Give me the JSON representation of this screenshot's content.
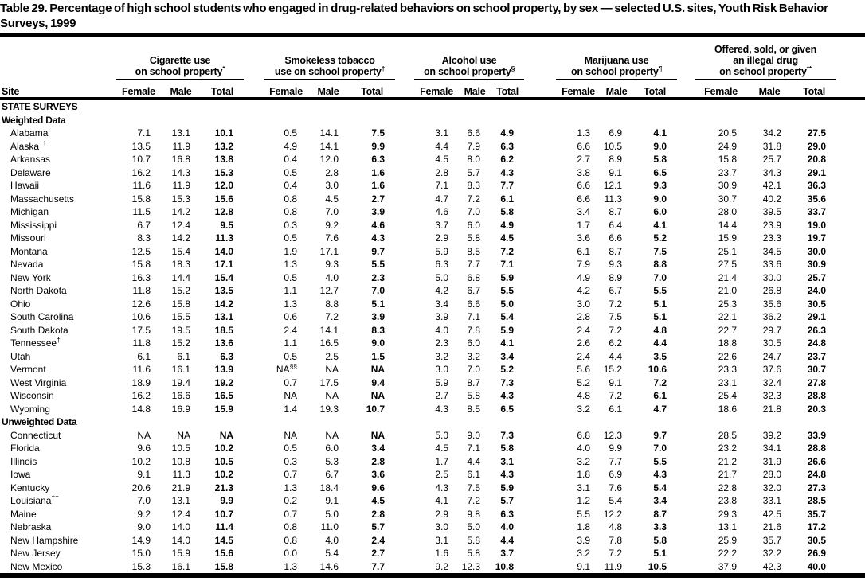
{
  "title": "Table 29. Percentage of high school students who engaged in drug-related behaviors on school property, by sex — selected U.S. sites, Youth Risk Behavior Surveys, 1999",
  "table": {
    "site_column_header": "Site",
    "column_groups": [
      {
        "name": "cigarette-use",
        "lines": [
          "Cigarette use",
          "on school property*"
        ]
      },
      {
        "name": "smokeless-tobacco-use",
        "lines": [
          "Smokeless tobacco",
          "use on school property†"
        ]
      },
      {
        "name": "alcohol-use",
        "lines": [
          "Alcohol use",
          "on school property§"
        ]
      },
      {
        "name": "marijuana-use",
        "lines": [
          "Marijuana use",
          "on school property¶"
        ]
      },
      {
        "name": "offered-sold-given-illegal-drug",
        "lines": [
          "Offered, sold, or given",
          "an illegal drug",
          "on school property**"
        ]
      }
    ],
    "sub_columns": [
      "Female",
      "Male",
      "Total"
    ],
    "rows": [
      {
        "type": "section",
        "label": "STATE SURVEYS"
      },
      {
        "type": "section",
        "label": "Weighted Data"
      },
      {
        "type": "data",
        "site": "Alabama",
        "sup": "",
        "values": [
          "7.1",
          "13.1",
          "10.1",
          "0.5",
          "14.1",
          "7.5",
          "3.1",
          "6.6",
          "4.9",
          "1.3",
          "6.9",
          "4.1",
          "20.5",
          "34.2",
          "27.5"
        ]
      },
      {
        "type": "data",
        "site": "Alaska",
        "sup": "††",
        "values": [
          "13.5",
          "11.9",
          "13.2",
          "4.9",
          "14.1",
          "9.9",
          "4.4",
          "7.9",
          "6.3",
          "6.6",
          "10.5",
          "9.0",
          "24.9",
          "31.8",
          "29.0"
        ]
      },
      {
        "type": "data",
        "site": "Arkansas",
        "sup": "",
        "values": [
          "10.7",
          "16.8",
          "13.8",
          "0.4",
          "12.0",
          "6.3",
          "4.5",
          "8.0",
          "6.2",
          "2.7",
          "8.9",
          "5.8",
          "15.8",
          "25.7",
          "20.8"
        ]
      },
      {
        "type": "data",
        "site": "Delaware",
        "sup": "",
        "values": [
          "16.2",
          "14.3",
          "15.3",
          "0.5",
          "2.8",
          "1.6",
          "2.8",
          "5.7",
          "4.3",
          "3.8",
          "9.1",
          "6.5",
          "23.7",
          "34.3",
          "29.1"
        ]
      },
      {
        "type": "data",
        "site": "Hawaii",
        "sup": "",
        "values": [
          "11.6",
          "11.9",
          "12.0",
          "0.4",
          "3.0",
          "1.6",
          "7.1",
          "8.3",
          "7.7",
          "6.6",
          "12.1",
          "9.3",
          "30.9",
          "42.1",
          "36.3"
        ]
      },
      {
        "type": "data",
        "site": "Massachusetts",
        "sup": "",
        "values": [
          "15.8",
          "15.3",
          "15.6",
          "0.8",
          "4.5",
          "2.7",
          "4.7",
          "7.2",
          "6.1",
          "6.6",
          "11.3",
          "9.0",
          "30.7",
          "40.2",
          "35.6"
        ]
      },
      {
        "type": "data",
        "site": "Michigan",
        "sup": "",
        "values": [
          "11.5",
          "14.2",
          "12.8",
          "0.8",
          "7.0",
          "3.9",
          "4.6",
          "7.0",
          "5.8",
          "3.4",
          "8.7",
          "6.0",
          "28.0",
          "39.5",
          "33.7"
        ]
      },
      {
        "type": "data",
        "site": "Mississippi",
        "sup": "",
        "values": [
          "6.7",
          "12.4",
          "9.5",
          "0.3",
          "9.2",
          "4.6",
          "3.7",
          "6.0",
          "4.9",
          "1.7",
          "6.4",
          "4.1",
          "14.4",
          "23.9",
          "19.0"
        ]
      },
      {
        "type": "data",
        "site": "Missouri",
        "sup": "",
        "values": [
          "8.3",
          "14.2",
          "11.3",
          "0.5",
          "7.6",
          "4.3",
          "2.9",
          "5.8",
          "4.5",
          "3.6",
          "6.6",
          "5.2",
          "15.9",
          "23.3",
          "19.7"
        ]
      },
      {
        "type": "data",
        "site": "Montana",
        "sup": "",
        "values": [
          "12.5",
          "15.4",
          "14.0",
          "1.9",
          "17.1",
          "9.7",
          "5.9",
          "8.5",
          "7.2",
          "6.1",
          "8.7",
          "7.5",
          "25.1",
          "34.5",
          "30.0"
        ]
      },
      {
        "type": "data",
        "site": "Nevada",
        "sup": "",
        "values": [
          "15.8",
          "18.3",
          "17.1",
          "1.3",
          "9.3",
          "5.5",
          "6.3",
          "7.7",
          "7.1",
          "7.9",
          "9.3",
          "8.8",
          "27.5",
          "33.6",
          "30.9"
        ]
      },
      {
        "type": "data",
        "site": "New York",
        "sup": "",
        "values": [
          "16.3",
          "14.4",
          "15.4",
          "0.5",
          "4.0",
          "2.3",
          "5.0",
          "6.8",
          "5.9",
          "4.9",
          "8.9",
          "7.0",
          "21.4",
          "30.0",
          "25.7"
        ]
      },
      {
        "type": "data",
        "site": "North Dakota",
        "sup": "",
        "values": [
          "11.8",
          "15.2",
          "13.5",
          "1.1",
          "12.7",
          "7.0",
          "4.2",
          "6.7",
          "5.5",
          "4.2",
          "6.7",
          "5.5",
          "21.0",
          "26.8",
          "24.0"
        ]
      },
      {
        "type": "data",
        "site": "Ohio",
        "sup": "",
        "values": [
          "12.6",
          "15.8",
          "14.2",
          "1.3",
          "8.8",
          "5.1",
          "3.4",
          "6.6",
          "5.0",
          "3.0",
          "7.2",
          "5.1",
          "25.3",
          "35.6",
          "30.5"
        ]
      },
      {
        "type": "data",
        "site": "South Carolina",
        "sup": "",
        "values": [
          "10.6",
          "15.5",
          "13.1",
          "0.6",
          "7.2",
          "3.9",
          "3.9",
          "7.1",
          "5.4",
          "2.8",
          "7.5",
          "5.1",
          "22.1",
          "36.2",
          "29.1"
        ]
      },
      {
        "type": "data",
        "site": "South Dakota",
        "sup": "",
        "values": [
          "17.5",
          "19.5",
          "18.5",
          "2.4",
          "14.1",
          "8.3",
          "4.0",
          "7.8",
          "5.9",
          "2.4",
          "7.2",
          "4.8",
          "22.7",
          "29.7",
          "26.3"
        ]
      },
      {
        "type": "data",
        "site": "Tennessee",
        "sup": "†",
        "values": [
          "11.8",
          "15.2",
          "13.6",
          "1.1",
          "16.5",
          "9.0",
          "2.3",
          "6.0",
          "4.1",
          "2.6",
          "6.2",
          "4.4",
          "18.8",
          "30.5",
          "24.8"
        ]
      },
      {
        "type": "data",
        "site": "Utah",
        "sup": "",
        "values": [
          "6.1",
          "6.1",
          "6.3",
          "0.5",
          "2.5",
          "1.5",
          "3.2",
          "3.2",
          "3.4",
          "2.4",
          "4.4",
          "3.5",
          "22.6",
          "24.7",
          "23.7"
        ]
      },
      {
        "type": "data",
        "site": "Vermont",
        "sup": "",
        "values": [
          "11.6",
          "16.1",
          "13.9",
          "NA§§",
          "NA",
          "NA",
          "3.0",
          "7.0",
          "5.2",
          "5.6",
          "15.2",
          "10.6",
          "23.3",
          "37.6",
          "30.7"
        ]
      },
      {
        "type": "data",
        "site": "West Virginia",
        "sup": "",
        "values": [
          "18.9",
          "19.4",
          "19.2",
          "0.7",
          "17.5",
          "9.4",
          "5.9",
          "8.7",
          "7.3",
          "5.2",
          "9.1",
          "7.2",
          "23.1",
          "32.4",
          "27.8"
        ]
      },
      {
        "type": "data",
        "site": "Wisconsin",
        "sup": "",
        "values": [
          "16.2",
          "16.6",
          "16.5",
          "NA",
          "NA",
          "NA",
          "2.7",
          "5.8",
          "4.3",
          "4.8",
          "7.2",
          "6.1",
          "25.4",
          "32.3",
          "28.8"
        ]
      },
      {
        "type": "data",
        "site": "Wyoming",
        "sup": "",
        "values": [
          "14.8",
          "16.9",
          "15.9",
          "1.4",
          "19.3",
          "10.7",
          "4.3",
          "8.5",
          "6.5",
          "3.2",
          "6.1",
          "4.7",
          "18.6",
          "21.8",
          "20.3"
        ]
      },
      {
        "type": "section",
        "label": "Unweighted Data"
      },
      {
        "type": "data",
        "site": "Connecticut",
        "sup": "",
        "values": [
          "NA",
          "NA",
          "NA",
          "NA",
          "NA",
          "NA",
          "5.0",
          "9.0",
          "7.3",
          "6.8",
          "12.3",
          "9.7",
          "28.5",
          "39.2",
          "33.9"
        ]
      },
      {
        "type": "data",
        "site": "Florida",
        "sup": "",
        "values": [
          "9.6",
          "10.5",
          "10.2",
          "0.5",
          "6.0",
          "3.4",
          "4.5",
          "7.1",
          "5.8",
          "4.0",
          "9.9",
          "7.0",
          "23.2",
          "34.1",
          "28.8"
        ]
      },
      {
        "type": "data",
        "site": "Illinois",
        "sup": "",
        "values": [
          "10.2",
          "10.8",
          "10.5",
          "0.3",
          "5.3",
          "2.8",
          "1.7",
          "4.4",
          "3.1",
          "3.2",
          "7.7",
          "5.5",
          "21.2",
          "31.9",
          "26.6"
        ]
      },
      {
        "type": "data",
        "site": "Iowa",
        "sup": "",
        "values": [
          "9.1",
          "11.3",
          "10.2",
          "0.7",
          "6.7",
          "3.6",
          "2.5",
          "6.1",
          "4.3",
          "1.8",
          "6.9",
          "4.3",
          "21.7",
          "28.0",
          "24.8"
        ]
      },
      {
        "type": "data",
        "site": "Kentucky",
        "sup": "",
        "values": [
          "20.6",
          "21.9",
          "21.3",
          "1.3",
          "18.4",
          "9.6",
          "4.3",
          "7.5",
          "5.9",
          "3.1",
          "7.6",
          "5.4",
          "22.8",
          "32.0",
          "27.3"
        ]
      },
      {
        "type": "data",
        "site": "Louisiana",
        "sup": "††",
        "values": [
          "7.0",
          "13.1",
          "9.9",
          "0.2",
          "9.1",
          "4.5",
          "4.1",
          "7.2",
          "5.7",
          "1.2",
          "5.4",
          "3.4",
          "23.8",
          "33.1",
          "28.5"
        ]
      },
      {
        "type": "data",
        "site": "Maine",
        "sup": "",
        "values": [
          "9.2",
          "12.4",
          "10.7",
          "0.7",
          "5.0",
          "2.8",
          "2.9",
          "9.8",
          "6.3",
          "5.5",
          "12.2",
          "8.7",
          "29.3",
          "42.5",
          "35.7"
        ]
      },
      {
        "type": "data",
        "site": "Nebraska",
        "sup": "",
        "values": [
          "9.0",
          "14.0",
          "11.4",
          "0.8",
          "11.0",
          "5.7",
          "3.0",
          "5.0",
          "4.0",
          "1.8",
          "4.8",
          "3.3",
          "13.1",
          "21.6",
          "17.2"
        ]
      },
      {
        "type": "data",
        "site": "New Hampshire",
        "sup": "",
        "values": [
          "14.9",
          "14.0",
          "14.5",
          "0.8",
          "4.0",
          "2.4",
          "3.1",
          "5.8",
          "4.4",
          "3.9",
          "7.8",
          "5.8",
          "25.9",
          "35.7",
          "30.5"
        ]
      },
      {
        "type": "data",
        "site": "New Jersey",
        "sup": "",
        "values": [
          "15.0",
          "15.9",
          "15.6",
          "0.0",
          "5.4",
          "2.7",
          "1.6",
          "5.8",
          "3.7",
          "3.2",
          "7.2",
          "5.1",
          "22.2",
          "32.2",
          "26.9"
        ]
      },
      {
        "type": "data",
        "site": "New Mexico",
        "sup": "",
        "values": [
          "15.3",
          "16.1",
          "15.8",
          "1.3",
          "14.6",
          "7.7",
          "9.2",
          "12.3",
          "10.8",
          "9.1",
          "11.9",
          "10.5",
          "37.9",
          "42.3",
          "40.0"
        ]
      }
    ]
  }
}
